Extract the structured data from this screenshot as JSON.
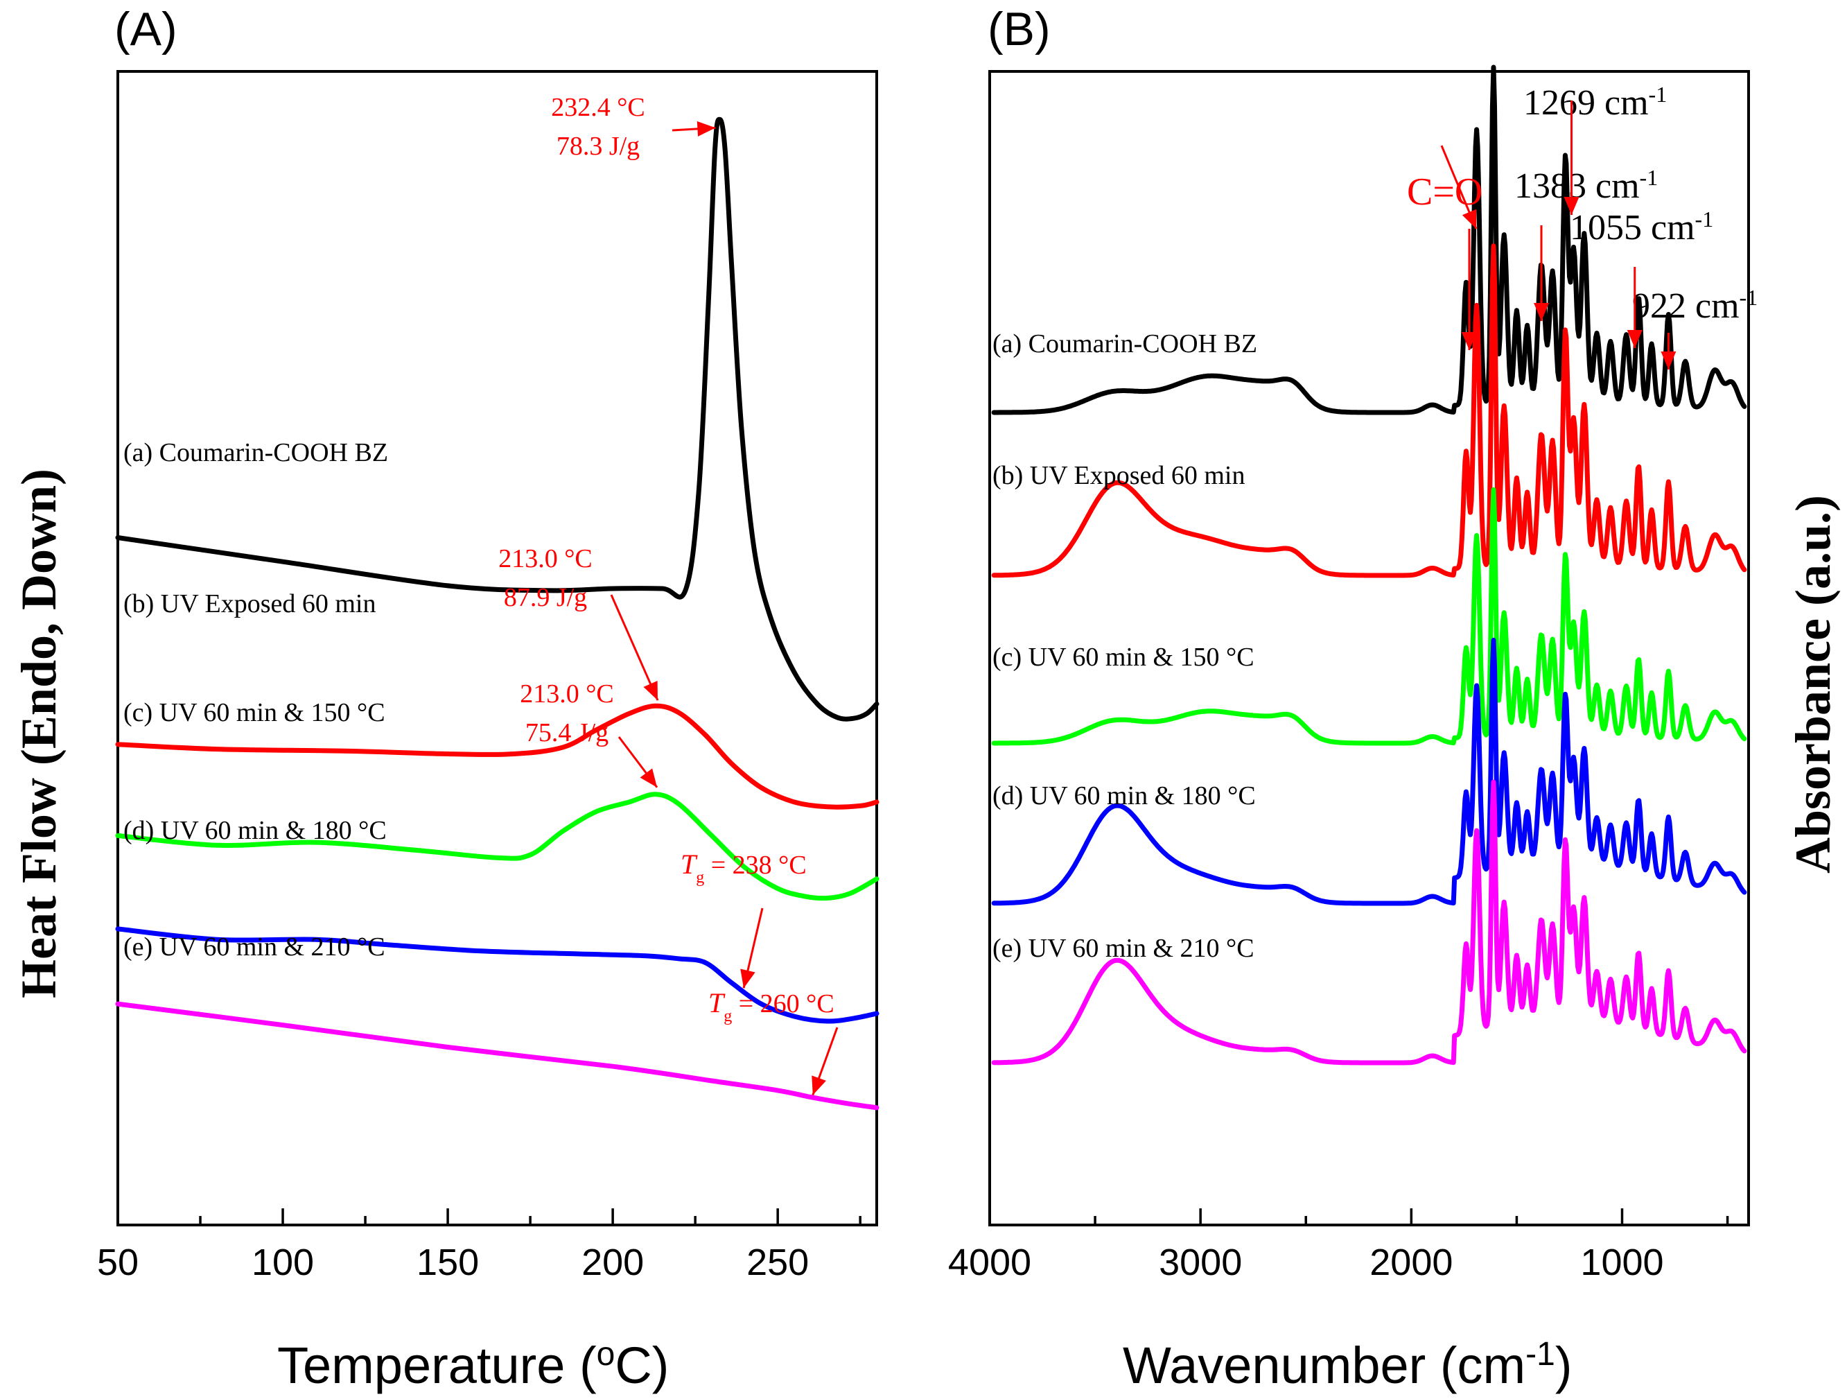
{
  "chart_data": [
    {
      "type": "line",
      "panel": "(A)",
      "xlabel": "Temperature (°C)",
      "ylabel": "Heat Flow (Endo, Down)",
      "xlim": [
        50,
        280
      ],
      "ylim": [
        0,
        12
      ],
      "xticks": [
        50,
        100,
        150,
        200,
        250
      ],
      "series": [
        {
          "name": "(a) Coumarin-COOH BZ",
          "color": "#000000",
          "x": [
            50,
            100,
            150,
            180,
            200,
            215,
            222,
            226,
            229,
            231,
            232.4,
            234,
            236,
            239,
            243,
            248,
            255,
            262,
            268,
            273,
            277,
            280
          ],
          "y": [
            7.15,
            6.9,
            6.65,
            6.6,
            6.62,
            6.62,
            6.6,
            7.6,
            9.6,
            11.2,
            11.5,
            11.2,
            10.0,
            8.3,
            7.0,
            6.3,
            5.75,
            5.42,
            5.28,
            5.27,
            5.32,
            5.42
          ]
        },
        {
          "name": "(b) UV Exposed 60 min",
          "color": "#ff0000",
          "x": [
            50,
            80,
            120,
            150,
            170,
            185,
            195,
            205,
            213,
            220,
            228,
            236,
            245,
            255,
            265,
            275,
            280
          ],
          "y": [
            5.0,
            4.95,
            4.93,
            4.9,
            4.9,
            4.97,
            5.15,
            5.32,
            5.4,
            5.33,
            5.1,
            4.8,
            4.55,
            4.4,
            4.35,
            4.36,
            4.4
          ]
        },
        {
          "name": "(c) UV 60 min & 150 °C",
          "color": "#00ff00",
          "x": [
            50,
            80,
            110,
            140,
            165,
            175,
            185,
            195,
            205,
            213,
            220,
            230,
            240,
            250,
            258,
            265,
            272,
            280
          ],
          "y": [
            4.05,
            3.95,
            3.98,
            3.9,
            3.82,
            3.85,
            4.1,
            4.3,
            4.4,
            4.48,
            4.38,
            4.05,
            3.72,
            3.5,
            3.42,
            3.4,
            3.45,
            3.6
          ]
        },
        {
          "name": "(d) UV 60 min & 180 °C",
          "color": "#0000ff",
          "x": [
            50,
            80,
            110,
            130,
            160,
            190,
            210,
            220,
            228,
            236,
            245,
            255,
            265,
            273,
            280
          ],
          "y": [
            3.08,
            2.97,
            2.97,
            2.92,
            2.85,
            2.82,
            2.8,
            2.77,
            2.73,
            2.52,
            2.3,
            2.17,
            2.12,
            2.15,
            2.2
          ]
        },
        {
          "name": "(e) UV 60 min & 210 °C",
          "color": "#ff00ff",
          "x": [
            50,
            100,
            150,
            200,
            230,
            250,
            260,
            270,
            280
          ],
          "y": [
            2.3,
            2.08,
            1.85,
            1.65,
            1.5,
            1.4,
            1.33,
            1.27,
            1.22
          ]
        }
      ],
      "series_labels": [
        "(a) Coumarin-COOH BZ",
        "(b) UV Exposed 60 min",
        "(c) UV 60 min & 150 °C",
        "(d) UV 60 min & 180 °C",
        "(e) UV 60 min & 210 °C"
      ],
      "annotations": [
        {
          "lines": [
            "232.4 °C",
            "78.3 J/g"
          ],
          "x": 232.4,
          "y": 11.5
        },
        {
          "lines": [
            "213.0 °C",
            "87.9 J/g"
          ],
          "x": 213,
          "y": 5.4
        },
        {
          "lines": [
            "213.0 °C",
            "75.4 J/g"
          ],
          "x": 213,
          "y": 4.48
        },
        {
          "lines": [
            "T",
            "g",
            " = 238 °C"
          ],
          "x": 238,
          "y": 2.5
        },
        {
          "lines": [
            "T",
            "g",
            " = 260 °C"
          ],
          "x": 260,
          "y": 1.33
        }
      ]
    },
    {
      "type": "line",
      "panel": "(B)",
      "xlabel": "Wavenumber (cm-1)",
      "ylabel": "Absorbance (a.u.)",
      "xlim": [
        4000,
        400
      ],
      "ylim": [
        0,
        12
      ],
      "xticks": [
        4000,
        3000,
        2000,
        1000
      ],
      "series_labels": [
        "(a) Coumarin-COOH BZ",
        "(b) UV Exposed 60 min",
        "(c) UV 60 min & 150 °C",
        "(d) UV 60 min & 180 °C",
        "(e) UV 60 min & 210 °C"
      ],
      "series_colors": [
        "#000000",
        "#ff0000",
        "#00ff00",
        "#0000ff",
        "#ff00ff"
      ],
      "peak_labels": [
        {
          "text": "C=O",
          "x": 1720
        },
        {
          "text": "1383 cm",
          "sup": "-1",
          "x": 1383
        },
        {
          "text": "1269 cm",
          "sup": "-1",
          "x": 1269
        },
        {
          "text": "1055 cm",
          "sup": "-1",
          "x": 1055
        },
        {
          "text": "922 cm",
          "sup": "-1",
          "x": 922
        }
      ]
    }
  ]
}
